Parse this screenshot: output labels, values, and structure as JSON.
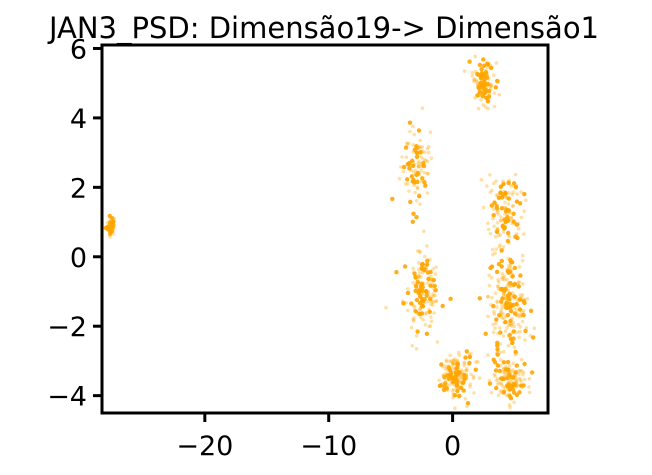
{
  "chart_data": {
    "type": "scatter",
    "title": "JAN3_PSD: Dimensão19-> Dimensão1",
    "xlabel": "",
    "ylabel": "",
    "xlim": [
      -28.3,
      7.7
    ],
    "ylim": [
      -4.5,
      6.1
    ],
    "x_ticks": [
      -20,
      -10,
      0
    ],
    "x_tick_labels": [
      "−20",
      "−10",
      "0"
    ],
    "y_ticks": [
      -4,
      -2,
      0,
      2,
      4,
      6
    ],
    "y_tick_labels": [
      "−4",
      "−2",
      "0",
      "2",
      "4",
      "6"
    ],
    "grid": false,
    "legend": "none",
    "point_color": "#FFA500",
    "clusters": [
      {
        "x": -27.6,
        "y": 0.9,
        "spread_x": 0.35,
        "spread_y": 0.25,
        "count": 40
      },
      {
        "x": 2.5,
        "y": 5.0,
        "spread_x": 0.8,
        "spread_y": 0.55,
        "count": 130
      },
      {
        "x": -3.0,
        "y": 2.6,
        "spread_x": 1.0,
        "spread_y": 1.1,
        "count": 110
      },
      {
        "x": -2.5,
        "y": -1.0,
        "spread_x": 1.3,
        "spread_y": 1.0,
        "count": 160
      },
      {
        "x": 0.2,
        "y": -3.4,
        "spread_x": 1.3,
        "spread_y": 0.6,
        "count": 170
      },
      {
        "x": 4.2,
        "y": 1.2,
        "spread_x": 1.3,
        "spread_y": 1.1,
        "count": 140
      },
      {
        "x": 4.5,
        "y": -1.5,
        "spread_x": 1.4,
        "spread_y": 1.4,
        "count": 220
      },
      {
        "x": 4.5,
        "y": -3.6,
        "spread_x": 1.2,
        "spread_y": 0.5,
        "count": 120
      }
    ]
  }
}
